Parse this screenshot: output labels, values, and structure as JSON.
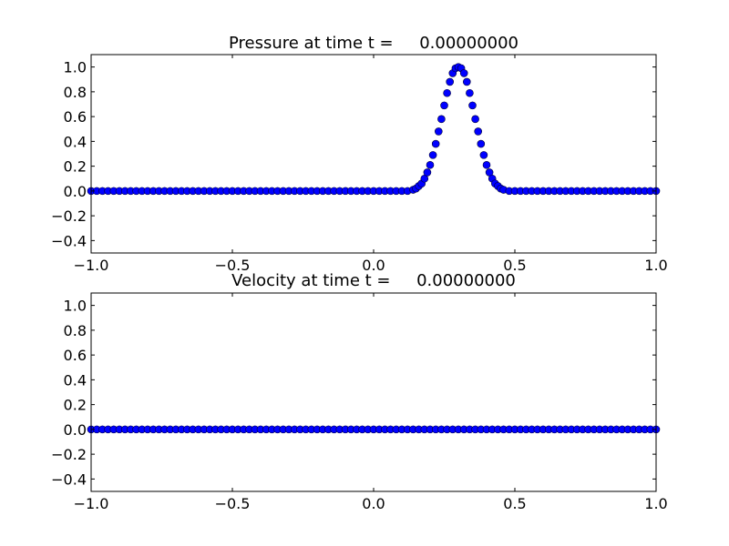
{
  "chart_data": [
    {
      "type": "scatter",
      "title": "Pressure at time t =     0.00000000",
      "xlabel": "",
      "ylabel": "",
      "xlim": [
        -1.0,
        1.0
      ],
      "ylim": [
        -0.5,
        1.1
      ],
      "xticks": [
        -1.0,
        -0.5,
        0.0,
        0.5,
        1.0
      ],
      "xtick_labels": [
        "−1.0",
        "−0.5",
        "0.0",
        "0.5",
        "1.0"
      ],
      "yticks": [
        -0.4,
        -0.2,
        0.0,
        0.2,
        0.4,
        0.6,
        0.8,
        1.0
      ],
      "ytick_labels": [
        "−0.4",
        "−0.2",
        "0.0",
        "0.2",
        "0.4",
        "0.6",
        "0.8",
        "1.0"
      ],
      "grid": false,
      "marker": "circle",
      "color": "#0000ff",
      "series": [
        {
          "x": [
            -1.0,
            -0.98,
            -0.96,
            -0.94,
            -0.92,
            -0.9,
            -0.88,
            -0.86,
            -0.84,
            -0.82,
            -0.8,
            -0.78,
            -0.76,
            -0.74,
            -0.72,
            -0.7,
            -0.68,
            -0.66,
            -0.64,
            -0.62,
            -0.6,
            -0.58,
            -0.56,
            -0.54,
            -0.52,
            -0.5,
            -0.48,
            -0.46,
            -0.44,
            -0.42,
            -0.4,
            -0.38,
            -0.36,
            -0.34,
            -0.32,
            -0.3,
            -0.28,
            -0.26,
            -0.24,
            -0.22,
            -0.2,
            -0.18,
            -0.16,
            -0.14,
            -0.12,
            -0.1,
            -0.08,
            -0.06,
            -0.04,
            -0.02,
            0.0,
            0.02,
            0.04,
            0.06,
            0.08,
            0.1,
            0.12,
            0.14,
            0.15,
            0.16,
            0.17,
            0.18,
            0.19,
            0.2,
            0.21,
            0.22,
            0.23,
            0.24,
            0.25,
            0.26,
            0.27,
            0.28,
            0.29,
            0.3,
            0.31,
            0.32,
            0.33,
            0.34,
            0.35,
            0.36,
            0.37,
            0.38,
            0.39,
            0.4,
            0.41,
            0.42,
            0.43,
            0.44,
            0.45,
            0.46,
            0.48,
            0.5,
            0.52,
            0.54,
            0.56,
            0.58,
            0.6,
            0.62,
            0.64,
            0.66,
            0.68,
            0.7,
            0.72,
            0.74,
            0.76,
            0.78,
            0.8,
            0.82,
            0.84,
            0.86,
            0.88,
            0.9,
            0.92,
            0.94,
            0.96,
            0.98,
            1.0
          ],
          "y": [
            0.0,
            0.0,
            0.0,
            0.0,
            0.0,
            0.0,
            0.0,
            0.0,
            0.0,
            0.0,
            0.0,
            0.0,
            0.0,
            0.0,
            0.0,
            0.0,
            0.0,
            0.0,
            0.0,
            0.0,
            0.0,
            0.0,
            0.0,
            0.0,
            0.0,
            0.0,
            0.0,
            0.0,
            0.0,
            0.0,
            0.0,
            0.0,
            0.0,
            0.0,
            0.0,
            0.0,
            0.0,
            0.0,
            0.0,
            0.0,
            0.0,
            0.0,
            0.0,
            0.0,
            0.0,
            0.0,
            0.0,
            0.0,
            0.0,
            0.0,
            0.0,
            0.0,
            0.0,
            0.0,
            0.0,
            0.0,
            0.0,
            0.01,
            0.02,
            0.04,
            0.06,
            0.1,
            0.15,
            0.21,
            0.29,
            0.38,
            0.48,
            0.58,
            0.69,
            0.79,
            0.88,
            0.95,
            0.99,
            1.0,
            0.99,
            0.95,
            0.88,
            0.79,
            0.69,
            0.58,
            0.48,
            0.38,
            0.29,
            0.21,
            0.15,
            0.1,
            0.06,
            0.04,
            0.02,
            0.01,
            0.0,
            0.0,
            0.0,
            0.0,
            0.0,
            0.0,
            0.0,
            0.0,
            0.0,
            0.0,
            0.0,
            0.0,
            0.0,
            0.0,
            0.0,
            0.0,
            0.0,
            0.0,
            0.0,
            0.0,
            0.0,
            0.0,
            0.0,
            0.0,
            0.0,
            0.0,
            0.0
          ]
        }
      ]
    },
    {
      "type": "scatter",
      "title": "Velocity at time t =     0.00000000",
      "xlabel": "",
      "ylabel": "",
      "xlim": [
        -1.0,
        1.0
      ],
      "ylim": [
        -0.5,
        1.1
      ],
      "xticks": [
        -1.0,
        -0.5,
        0.0,
        0.5,
        1.0
      ],
      "xtick_labels": [
        "−1.0",
        "−0.5",
        "0.0",
        "0.5",
        "1.0"
      ],
      "yticks": [
        -0.4,
        -0.2,
        0.0,
        0.2,
        0.4,
        0.6,
        0.8,
        1.0
      ],
      "ytick_labels": [
        "−0.4",
        "−0.2",
        "0.0",
        "0.2",
        "0.4",
        "0.6",
        "0.8",
        "1.0"
      ],
      "grid": false,
      "marker": "circle",
      "color": "#0000ff",
      "series": [
        {
          "x": [
            -1.0,
            -0.98,
            -0.96,
            -0.94,
            -0.92,
            -0.9,
            -0.88,
            -0.86,
            -0.84,
            -0.82,
            -0.8,
            -0.78,
            -0.76,
            -0.74,
            -0.72,
            -0.7,
            -0.68,
            -0.66,
            -0.64,
            -0.62,
            -0.6,
            -0.58,
            -0.56,
            -0.54,
            -0.52,
            -0.5,
            -0.48,
            -0.46,
            -0.44,
            -0.42,
            -0.4,
            -0.38,
            -0.36,
            -0.34,
            -0.32,
            -0.3,
            -0.28,
            -0.26,
            -0.24,
            -0.22,
            -0.2,
            -0.18,
            -0.16,
            -0.14,
            -0.12,
            -0.1,
            -0.08,
            -0.06,
            -0.04,
            -0.02,
            0.0,
            0.02,
            0.04,
            0.06,
            0.08,
            0.1,
            0.12,
            0.14,
            0.16,
            0.18,
            0.2,
            0.22,
            0.24,
            0.26,
            0.28,
            0.3,
            0.32,
            0.34,
            0.36,
            0.38,
            0.4,
            0.42,
            0.44,
            0.46,
            0.48,
            0.5,
            0.52,
            0.54,
            0.56,
            0.58,
            0.6,
            0.62,
            0.64,
            0.66,
            0.68,
            0.7,
            0.72,
            0.74,
            0.76,
            0.78,
            0.8,
            0.82,
            0.84,
            0.86,
            0.88,
            0.9,
            0.92,
            0.94,
            0.96,
            0.98,
            1.0
          ],
          "y": [
            0.0,
            0.0,
            0.0,
            0.0,
            0.0,
            0.0,
            0.0,
            0.0,
            0.0,
            0.0,
            0.0,
            0.0,
            0.0,
            0.0,
            0.0,
            0.0,
            0.0,
            0.0,
            0.0,
            0.0,
            0.0,
            0.0,
            0.0,
            0.0,
            0.0,
            0.0,
            0.0,
            0.0,
            0.0,
            0.0,
            0.0,
            0.0,
            0.0,
            0.0,
            0.0,
            0.0,
            0.0,
            0.0,
            0.0,
            0.0,
            0.0,
            0.0,
            0.0,
            0.0,
            0.0,
            0.0,
            0.0,
            0.0,
            0.0,
            0.0,
            0.0,
            0.0,
            0.0,
            0.0,
            0.0,
            0.0,
            0.0,
            0.0,
            0.0,
            0.0,
            0.0,
            0.0,
            0.0,
            0.0,
            0.0,
            0.0,
            0.0,
            0.0,
            0.0,
            0.0,
            0.0,
            0.0,
            0.0,
            0.0,
            0.0,
            0.0,
            0.0,
            0.0,
            0.0,
            0.0,
            0.0,
            0.0,
            0.0,
            0.0,
            0.0,
            0.0,
            0.0,
            0.0,
            0.0,
            0.0,
            0.0,
            0.0,
            0.0,
            0.0,
            0.0,
            0.0,
            0.0,
            0.0,
            0.0,
            0.0,
            0.0
          ]
        }
      ]
    }
  ]
}
